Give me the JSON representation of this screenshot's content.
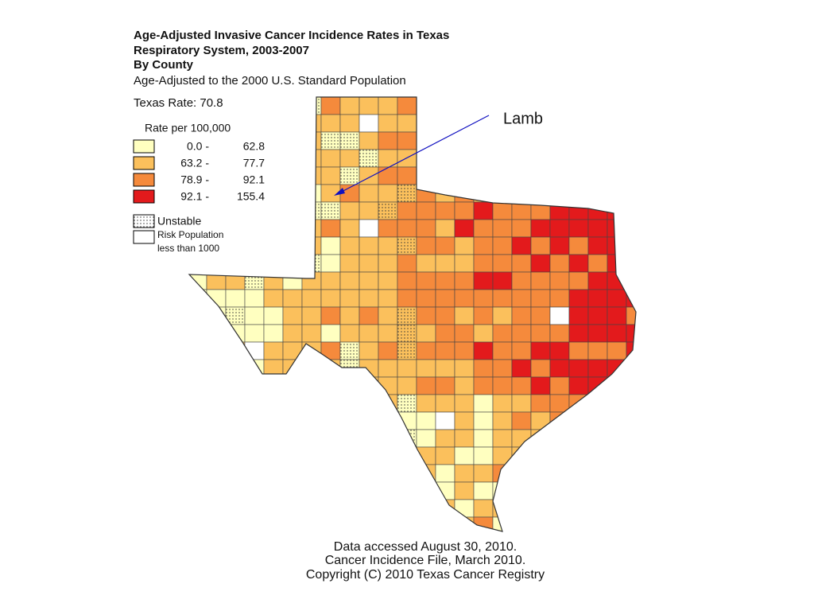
{
  "title": {
    "lines": [
      "Age-Adjusted Invasive Cancer Incidence Rates in Texas",
      "Respiratory System, 2003-2007",
      "By County"
    ],
    "subtitle": "Age-Adjusted to the 2000 U.S. Standard Population"
  },
  "state_rate": "Texas Rate: 70.8",
  "legend": {
    "title": "Rate per 100,000",
    "classes": [
      {
        "low": "0.0 -",
        "high": "62.8",
        "color": "#ffffc0"
      },
      {
        "low": "63.2 -",
        "high": "77.7",
        "color": "#fbc05c"
      },
      {
        "low": "78.9 -",
        "high": "92.1",
        "color": "#f58a3c"
      },
      {
        "low": "92.1 -",
        "high": "155.4",
        "color": "#e31a1c"
      }
    ],
    "unstable": "Unstable",
    "risk_population": [
      "Risk Population",
      "less than 1000"
    ]
  },
  "annotation": "Lamb",
  "footer": [
    "Data accessed August 30, 2010.",
    "Cancer Incidence File, March 2010.",
    "Copyright (C) 2010 Texas Cancer Registry"
  ]
}
